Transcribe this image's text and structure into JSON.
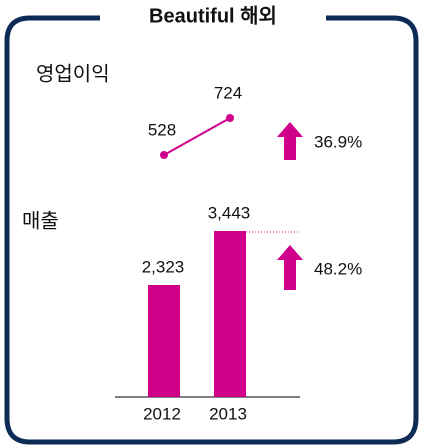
{
  "title": "Beautiful 해외",
  "chart_data": [
    {
      "type": "line",
      "title": "영업이익",
      "values": [
        528,
        724
      ],
      "annotation": "36.9%",
      "color": "#d0008a"
    },
    {
      "type": "bar",
      "title": "매출",
      "categories": [
        "2012",
        "2013"
      ],
      "values": [
        2323,
        3443
      ],
      "value_labels": [
        "2,323",
        "3,443"
      ],
      "annotation": "48.2%",
      "color": "#d0008a"
    }
  ]
}
